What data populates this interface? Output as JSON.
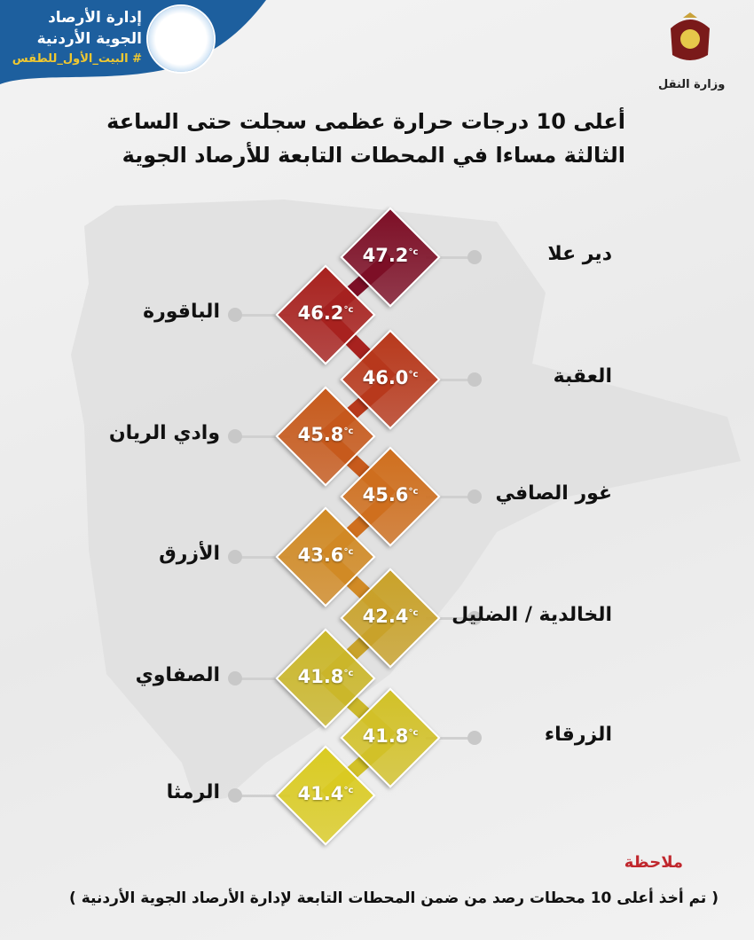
{
  "header": {
    "org_line1": "إدارة الأرصاد",
    "org_line2": "الجوية الأردنية",
    "hashtag": "# البيت_الأول_للطقس",
    "ministry": "وزارة النقل",
    "brand_color": "#1d5f9e"
  },
  "title": {
    "line1": "أعلى 10 درجات حرارة عظمى سجلت حتى الساعة",
    "line2": "الثالثة مساءا في المحطات التابعة للأرصاد الجوية"
  },
  "unit": "°c",
  "stations": [
    {
      "name": "دير علا",
      "value": "47.2",
      "color": "#7d0f26"
    },
    {
      "name": "الباقورة",
      "value": "46.2",
      "color": "#a8221f"
    },
    {
      "name": "العقبة",
      "value": "46.0",
      "color": "#b8391c"
    },
    {
      "name": "وادي الريان",
      "value": "45.8",
      "color": "#c75a1c"
    },
    {
      "name": "غور الصافي",
      "value": "45.6",
      "color": "#cf6f1e"
    },
    {
      "name": "الأزرق",
      "value": "43.6",
      "color": "#d18a25"
    },
    {
      "name": "الخالدية / الضليل",
      "value": "42.4",
      "color": "#c9a22a"
    },
    {
      "name": "الصفاوي",
      "value": "41.8",
      "color": "#cbb72a"
    },
    {
      "name": "الزرقاء",
      "value": "41.8",
      "color": "#d2c128"
    },
    {
      "name": "الرمثا",
      "value": "41.4",
      "color": "#dacb22"
    }
  ],
  "note": {
    "title": "ملاحظة",
    "text": "( تم أخذ أعلى 10 محطات رصد من ضمن المحطات التابعة لإدارة الأرصاد الجوية الأردنية )"
  }
}
